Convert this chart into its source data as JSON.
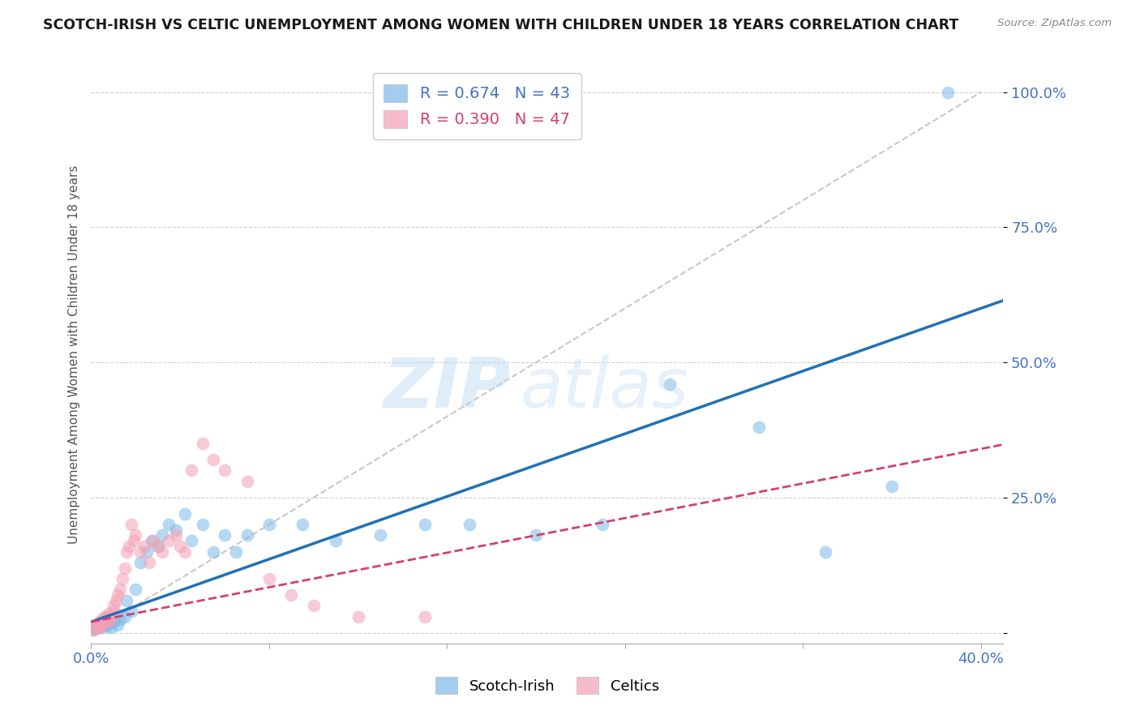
{
  "title": "SCOTCH-IRISH VS CELTIC UNEMPLOYMENT AMONG WOMEN WITH CHILDREN UNDER 18 YEARS CORRELATION CHART",
  "source": "Source: ZipAtlas.com",
  "ylabel": "Unemployment Among Women with Children Under 18 years",
  "scotch_irish_R": 0.674,
  "scotch_irish_N": 43,
  "celtics_R": 0.39,
  "celtics_N": 47,
  "scotch_irish_color": "#7bb8e8",
  "celtics_color": "#f4a0b5",
  "regression_scotch_color": "#2171b5",
  "regression_celtics_color": "#d44070",
  "diagonal_color": "#c8c8c8",
  "scotch_irish_x": [
    0.001,
    0.002,
    0.003,
    0.004,
    0.005,
    0.006,
    0.007,
    0.008,
    0.009,
    0.01,
    0.012,
    0.013,
    0.015,
    0.016,
    0.018,
    0.02,
    0.022,
    0.025,
    0.027,
    0.03,
    0.032,
    0.035,
    0.038,
    0.042,
    0.045,
    0.05,
    0.055,
    0.06,
    0.065,
    0.07,
    0.08,
    0.095,
    0.11,
    0.13,
    0.15,
    0.17,
    0.2,
    0.23,
    0.26,
    0.3,
    0.33,
    0.36,
    0.385
  ],
  "scotch_irish_y": [
    0.005,
    0.008,
    0.01,
    0.012,
    0.01,
    0.015,
    0.013,
    0.018,
    0.01,
    0.02,
    0.015,
    0.025,
    0.03,
    0.06,
    0.04,
    0.08,
    0.13,
    0.15,
    0.17,
    0.16,
    0.18,
    0.2,
    0.19,
    0.22,
    0.17,
    0.2,
    0.15,
    0.18,
    0.15,
    0.18,
    0.2,
    0.2,
    0.17,
    0.18,
    0.2,
    0.2,
    0.18,
    0.2,
    0.46,
    0.38,
    0.15,
    0.27,
    1.0
  ],
  "celtics_x": [
    0.001,
    0.002,
    0.003,
    0.003,
    0.004,
    0.004,
    0.005,
    0.005,
    0.006,
    0.006,
    0.007,
    0.007,
    0.008,
    0.008,
    0.009,
    0.01,
    0.01,
    0.011,
    0.012,
    0.013,
    0.014,
    0.015,
    0.016,
    0.017,
    0.018,
    0.019,
    0.02,
    0.022,
    0.024,
    0.026,
    0.028,
    0.03,
    0.032,
    0.035,
    0.038,
    0.04,
    0.042,
    0.045,
    0.05,
    0.055,
    0.06,
    0.07,
    0.08,
    0.09,
    0.1,
    0.12,
    0.15
  ],
  "celtics_y": [
    0.005,
    0.008,
    0.01,
    0.015,
    0.01,
    0.02,
    0.015,
    0.025,
    0.02,
    0.03,
    0.025,
    0.03,
    0.035,
    0.02,
    0.03,
    0.04,
    0.05,
    0.06,
    0.07,
    0.08,
    0.1,
    0.12,
    0.15,
    0.16,
    0.2,
    0.17,
    0.18,
    0.15,
    0.16,
    0.13,
    0.17,
    0.16,
    0.15,
    0.17,
    0.18,
    0.16,
    0.15,
    0.3,
    0.35,
    0.32,
    0.3,
    0.28,
    0.1,
    0.07,
    0.05,
    0.03,
    0.03
  ],
  "watermark_line1": "ZIP",
  "watermark_line2": "atlas",
  "background_color": "#ffffff",
  "xlim": [
    0.0,
    0.41
  ],
  "ylim": [
    -0.02,
    1.05
  ],
  "x_ticks": [
    0.0,
    0.08,
    0.16,
    0.24,
    0.32,
    0.4
  ],
  "y_ticks": [
    0.0,
    0.25,
    0.5,
    0.75,
    1.0
  ],
  "x_tick_labels": [
    "0.0%",
    "",
    "",
    "",
    "",
    "40.0%"
  ],
  "y_tick_labels": [
    "",
    "25.0%",
    "50.0%",
    "75.0%",
    "100.0%"
  ]
}
